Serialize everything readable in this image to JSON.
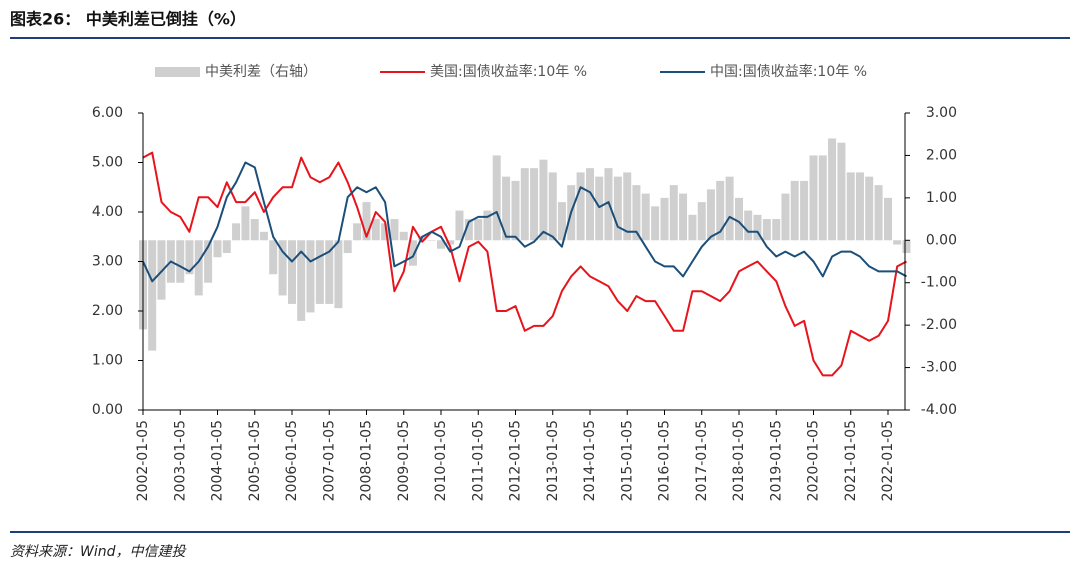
{
  "chart_data": {
    "type": "line",
    "title": "图表26： 中美利差已倒挂（%）",
    "source": "资料来源：Wind，中信建投",
    "x": [
      "2002-01-05",
      "2002-04-05",
      "2002-07-05",
      "2002-10-05",
      "2003-01-05",
      "2003-04-05",
      "2003-07-05",
      "2003-10-05",
      "2004-01-05",
      "2004-04-05",
      "2004-07-05",
      "2004-10-05",
      "2005-01-05",
      "2005-04-05",
      "2005-07-05",
      "2005-10-05",
      "2006-01-05",
      "2006-04-05",
      "2006-07-05",
      "2006-10-05",
      "2007-01-05",
      "2007-04-05",
      "2007-07-05",
      "2007-10-05",
      "2008-01-05",
      "2008-04-05",
      "2008-07-05",
      "2008-10-05",
      "2009-01-05",
      "2009-04-05",
      "2009-07-05",
      "2009-10-05",
      "2010-01-05",
      "2010-04-05",
      "2010-07-05",
      "2010-10-05",
      "2011-01-05",
      "2011-04-05",
      "2011-07-05",
      "2011-10-05",
      "2012-01-05",
      "2012-04-05",
      "2012-07-05",
      "2012-10-05",
      "2013-01-05",
      "2013-04-05",
      "2013-07-05",
      "2013-10-05",
      "2014-01-05",
      "2014-04-05",
      "2014-07-05",
      "2014-10-05",
      "2015-01-05",
      "2015-04-05",
      "2015-07-05",
      "2015-10-05",
      "2016-01-05",
      "2016-04-05",
      "2016-07-05",
      "2016-10-05",
      "2017-01-05",
      "2017-04-05",
      "2017-07-05",
      "2017-10-05",
      "2018-01-05",
      "2018-04-05",
      "2018-07-05",
      "2018-10-05",
      "2019-01-05",
      "2019-04-05",
      "2019-07-05",
      "2019-10-05",
      "2020-01-05",
      "2020-04-05",
      "2020-07-05",
      "2020-10-05",
      "2021-01-05",
      "2021-04-05",
      "2021-07-05",
      "2021-10-05",
      "2022-01-05",
      "2022-04-05",
      "2022-07-05"
    ],
    "series": [
      {
        "name": "中美利差（右轴）",
        "color": "#cfcfcf",
        "axis": "y2",
        "kind": "bar",
        "values": [
          -2.1,
          -2.6,
          -1.4,
          -1.0,
          -1.0,
          -0.8,
          -1.3,
          -1.0,
          -0.4,
          -0.3,
          0.4,
          0.8,
          0.5,
          0.2,
          -0.8,
          -1.3,
          -1.5,
          -1.9,
          -1.7,
          -1.5,
          -1.5,
          -1.6,
          -0.3,
          0.4,
          0.9,
          0.5,
          0.4,
          0.5,
          0.2,
          -0.6,
          0.1,
          0.0,
          -0.2,
          -0.1,
          0.7,
          0.5,
          0.5,
          0.7,
          2.0,
          1.5,
          1.4,
          1.7,
          1.7,
          1.9,
          1.6,
          0.9,
          1.3,
          1.6,
          1.7,
          1.5,
          1.7,
          1.5,
          1.6,
          1.3,
          1.1,
          0.8,
          1.0,
          1.3,
          1.1,
          0.6,
          0.9,
          1.2,
          1.4,
          1.5,
          1.0,
          0.7,
          0.6,
          0.5,
          0.5,
          1.1,
          1.4,
          1.4,
          2.0,
          2.0,
          2.4,
          2.3,
          1.6,
          1.6,
          1.5,
          1.3,
          1.0,
          -0.1,
          -0.3
        ]
      },
      {
        "name": "美国:国债收益率:10年 %",
        "color": "#e8141c",
        "kind": "line",
        "values": [
          5.1,
          5.2,
          4.2,
          4.0,
          3.9,
          3.6,
          4.3,
          4.3,
          4.1,
          4.6,
          4.2,
          4.2,
          4.4,
          4.0,
          4.3,
          4.5,
          4.5,
          5.1,
          4.7,
          4.6,
          4.7,
          5.0,
          4.6,
          4.1,
          3.5,
          4.0,
          3.8,
          2.4,
          2.8,
          3.7,
          3.4,
          3.6,
          3.7,
          3.3,
          2.6,
          3.3,
          3.4,
          3.2,
          2.0,
          2.0,
          2.1,
          1.6,
          1.7,
          1.7,
          1.9,
          2.4,
          2.7,
          2.9,
          2.7,
          2.6,
          2.5,
          2.2,
          2.0,
          2.3,
          2.2,
          2.2,
          1.9,
          1.6,
          1.6,
          2.4,
          2.4,
          2.3,
          2.2,
          2.4,
          2.8,
          2.9,
          3.0,
          2.8,
          2.6,
          2.1,
          1.7,
          1.8,
          1.0,
          0.7,
          0.7,
          0.9,
          1.6,
          1.5,
          1.4,
          1.5,
          1.8,
          2.9,
          3.0
        ]
      },
      {
        "name": "中国:国债收益率:10年 %",
        "color": "#1b4f7a",
        "kind": "line",
        "values": [
          3.0,
          2.6,
          2.8,
          3.0,
          2.9,
          2.8,
          3.0,
          3.3,
          3.7,
          4.3,
          4.6,
          5.0,
          4.9,
          4.2,
          3.5,
          3.2,
          3.0,
          3.2,
          3.0,
          3.1,
          3.2,
          3.4,
          4.3,
          4.5,
          4.4,
          4.5,
          4.2,
          2.9,
          3.0,
          3.1,
          3.5,
          3.6,
          3.5,
          3.2,
          3.3,
          3.8,
          3.9,
          3.9,
          4.0,
          3.5,
          3.5,
          3.3,
          3.4,
          3.6,
          3.5,
          3.3,
          4.0,
          4.5,
          4.4,
          4.1,
          4.2,
          3.7,
          3.6,
          3.6,
          3.3,
          3.0,
          2.9,
          2.9,
          2.7,
          3.0,
          3.3,
          3.5,
          3.6,
          3.9,
          3.8,
          3.6,
          3.6,
          3.3,
          3.1,
          3.2,
          3.1,
          3.2,
          3.0,
          2.7,
          3.1,
          3.2,
          3.2,
          3.1,
          2.9,
          2.8,
          2.8,
          2.8,
          2.7
        ]
      }
    ],
    "ylim": [
      0,
      6
    ],
    "yticks": [
      {
        "value": 0,
        "label": "0.00"
      },
      {
        "value": 1,
        "label": "1.00"
      },
      {
        "value": 2,
        "label": "2.00"
      },
      {
        "value": 3,
        "label": "3.00"
      },
      {
        "value": 4,
        "label": "4.00"
      },
      {
        "value": 5,
        "label": "5.00"
      },
      {
        "value": 6,
        "label": "6.00"
      }
    ],
    "y2lim": [
      -4,
      3
    ],
    "y2ticks": [
      {
        "value": -4,
        "label": "-4.00"
      },
      {
        "value": -3,
        "label": "-3.00"
      },
      {
        "value": -2,
        "label": "-2.00"
      },
      {
        "value": -1,
        "label": "-1.00"
      },
      {
        "value": 0,
        "label": "0.00"
      },
      {
        "value": 1,
        "label": "1.00"
      },
      {
        "value": 2,
        "label": "2.00"
      },
      {
        "value": 3,
        "label": "3.00"
      }
    ],
    "xticks": [
      "2002-01-05",
      "2003-01-05",
      "2004-01-05",
      "2005-01-05",
      "2006-01-05",
      "2007-01-05",
      "2008-01-05",
      "2009-01-05",
      "2010-01-05",
      "2011-01-05",
      "2012-01-05",
      "2013-01-05",
      "2014-01-05",
      "2015-01-05",
      "2016-01-05",
      "2017-01-05",
      "2018-01-05",
      "2019-01-05",
      "2020-01-05",
      "2021-01-05",
      "2022-01-05"
    ],
    "legend": "top"
  }
}
